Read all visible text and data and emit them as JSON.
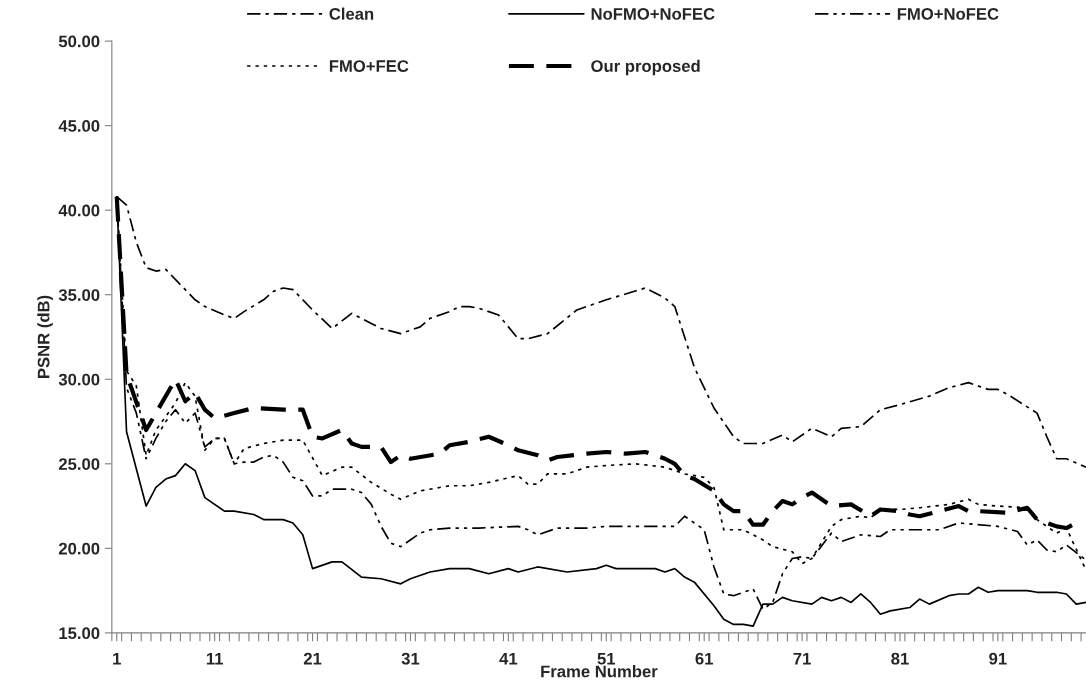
{
  "chart_data": {
    "type": "line",
    "xlabel": "Frame Number",
    "ylabel": "PSNR (dB)",
    "xlim": [
      0.5,
      100
    ],
    "ylim": [
      15,
      50
    ],
    "yticks": [
      {
        "value": 15,
        "label": "15.00"
      },
      {
        "value": 20,
        "label": "20.00"
      },
      {
        "value": 25,
        "label": "25.00"
      },
      {
        "value": 30,
        "label": "30.00"
      },
      {
        "value": 35,
        "label": "35.00"
      },
      {
        "value": 40,
        "label": "40.00"
      },
      {
        "value": 45,
        "label": "45.00"
      },
      {
        "value": 50,
        "label": "50.00"
      }
    ],
    "xticks": [
      1,
      11,
      21,
      31,
      41,
      51,
      61,
      71,
      81,
      91,
      {
        "value": 0.5,
        "label": null
      },
      {
        "value": 1.5,
        "label": null
      },
      {
        "value": 2.5,
        "label": null
      },
      {
        "value": 3.5,
        "label": null
      },
      {
        "value": 4.5,
        "label": null
      },
      {
        "value": 5.5,
        "label": null
      },
      {
        "value": 6.5,
        "label": null
      },
      {
        "value": 7.5,
        "label": null
      },
      {
        "value": 8.5,
        "label": null
      },
      {
        "value": 9.5,
        "label": null
      },
      {
        "value": 10.5,
        "label": null
      },
      {
        "value": 11.5,
        "label": null
      },
      {
        "value": 12.5,
        "label": null
      },
      {
        "value": 13.5,
        "label": null
      },
      {
        "value": 14.5,
        "label": null
      },
      {
        "value": 15.5,
        "label": null
      },
      {
        "value": 16.5,
        "label": null
      },
      {
        "value": 17.5,
        "label": null
      },
      {
        "value": 18.5,
        "label": null
      },
      {
        "value": 19.5,
        "label": null
      },
      {
        "value": 20.5,
        "label": null
      },
      {
        "value": 21.5,
        "label": null
      },
      {
        "value": 22.5,
        "label": null
      },
      {
        "value": 23.5,
        "label": null
      },
      {
        "value": 24.5,
        "label": null
      },
      {
        "value": 25.5,
        "label": null
      },
      {
        "value": 26.5,
        "label": null
      },
      {
        "value": 27.5,
        "label": null
      },
      {
        "value": 28.5,
        "label": null
      },
      {
        "value": 29.5,
        "label": null
      },
      {
        "value": 30.5,
        "label": null
      },
      {
        "value": 31.5,
        "label": null
      },
      {
        "value": 32.5,
        "label": null
      },
      {
        "value": 33.5,
        "label": null
      },
      {
        "value": 34.5,
        "label": null
      },
      {
        "value": 35.5,
        "label": null
      },
      {
        "value": 36.5,
        "label": null
      },
      {
        "value": 37.5,
        "label": null
      },
      {
        "value": 38.5,
        "label": null
      },
      {
        "value": 39.5,
        "label": null
      },
      {
        "value": 40.5,
        "label": null
      },
      {
        "value": 41.5,
        "label": null
      },
      {
        "value": 42.5,
        "label": null
      },
      {
        "value": 43.5,
        "label": null
      },
      {
        "value": 44.5,
        "label": null
      },
      {
        "value": 45.5,
        "label": null
      },
      {
        "value": 46.5,
        "label": null
      },
      {
        "value": 47.5,
        "label": null
      },
      {
        "value": 48.5,
        "label": null
      },
      {
        "value": 49.5,
        "label": null
      },
      {
        "value": 50.5,
        "label": null
      },
      {
        "value": 51.5,
        "label": null
      },
      {
        "value": 52.5,
        "label": null
      },
      {
        "value": 53.5,
        "label": null
      },
      {
        "value": 54.5,
        "label": null
      },
      {
        "value": 55.5,
        "label": null
      },
      {
        "value": 56.5,
        "label": null
      },
      {
        "value": 57.5,
        "label": null
      },
      {
        "value": 58.5,
        "label": null
      },
      {
        "value": 59.5,
        "label": null
      },
      {
        "value": 60.5,
        "label": null
      },
      {
        "value": 61.5,
        "label": null
      },
      {
        "value": 62.5,
        "label": null
      },
      {
        "value": 63.5,
        "label": null
      },
      {
        "value": 64.5,
        "label": null
      },
      {
        "value": 65.5,
        "label": null
      },
      {
        "value": 66.5,
        "label": null
      },
      {
        "value": 67.5,
        "label": null
      },
      {
        "value": 68.5,
        "label": null
      },
      {
        "value": 69.5,
        "label": null
      },
      {
        "value": 70.5,
        "label": null
      },
      {
        "value": 71.5,
        "label": null
      },
      {
        "value": 72.5,
        "label": null
      },
      {
        "value": 73.5,
        "label": null
      },
      {
        "value": 74.5,
        "label": null
      },
      {
        "value": 75.5,
        "label": null
      },
      {
        "value": 76.5,
        "label": null
      },
      {
        "value": 77.5,
        "label": null
      },
      {
        "value": 78.5,
        "label": null
      },
      {
        "value": 79.5,
        "label": null
      },
      {
        "value": 80.5,
        "label": null
      },
      {
        "value": 81.5,
        "label": null
      },
      {
        "value": 82.5,
        "label": null
      },
      {
        "value": 83.5,
        "label": null
      },
      {
        "value": 84.5,
        "label": null
      },
      {
        "value": 85.5,
        "label": null
      },
      {
        "value": 86.5,
        "label": null
      },
      {
        "value": 87.5,
        "label": null
      },
      {
        "value": 88.5,
        "label": null
      },
      {
        "value": 89.5,
        "label": null
      },
      {
        "value": 90.5,
        "label": null
      },
      {
        "value": 91.5,
        "label": null
      },
      {
        "value": 92.5,
        "label": null
      },
      {
        "value": 93.5,
        "label": null
      },
      {
        "value": 94.5,
        "label": null
      },
      {
        "value": 95.5,
        "label": null
      },
      {
        "value": 96.5,
        "label": null
      },
      {
        "value": 97.5,
        "label": null
      },
      {
        "value": 98.5,
        "label": null
      },
      {
        "value": 99.5,
        "label": null
      }
    ],
    "grid": false,
    "legend": "top",
    "marker": "none",
    "series": [
      {
        "name": "Clean",
        "color": "#000000",
        "line_style": "dashdot",
        "x": [
          1,
          2,
          3,
          4,
          5,
          6,
          8,
          9,
          10,
          12,
          13,
          14,
          16,
          17,
          18,
          19,
          21,
          23,
          25,
          26,
          27,
          28,
          30,
          32,
          33,
          35,
          36,
          37,
          38,
          40,
          42,
          43,
          45,
          48,
          51,
          55,
          57,
          58,
          60,
          62,
          64,
          65,
          67,
          69,
          70,
          72,
          74,
          75,
          77,
          79,
          81,
          84,
          86,
          88,
          90,
          91,
          92,
          95,
          96,
          97,
          98,
          100
        ],
        "values": [
          40.8,
          40.3,
          38.1,
          36.6,
          36.4,
          36.5,
          35.3,
          34.7,
          34.3,
          33.8,
          33.6,
          34.0,
          34.7,
          35.2,
          35.4,
          35.3,
          34.1,
          33.0,
          33.9,
          33.6,
          33.3,
          33.0,
          32.7,
          33.1,
          33.6,
          34.0,
          34.3,
          34.3,
          34.2,
          33.8,
          32.4,
          32.4,
          32.7,
          34.1,
          34.7,
          35.4,
          34.8,
          34.3,
          30.7,
          28.3,
          26.6,
          26.2,
          26.2,
          26.7,
          26.3,
          27.1,
          26.6,
          27.1,
          27.2,
          28.2,
          28.5,
          29.0,
          29.5,
          29.8,
          29.4,
          29.4,
          29.1,
          28.0,
          26.6,
          25.3,
          25.3,
          24.8
        ]
      },
      {
        "name": "NoFMO+NoFEC",
        "color": "#000000",
        "line_style": "solid",
        "x": [
          1,
          2,
          4,
          5,
          6,
          7,
          8,
          9,
          10,
          12,
          13,
          15,
          16,
          18,
          19,
          20,
          21,
          23,
          24,
          26,
          28,
          30,
          31,
          33,
          35,
          37,
          39,
          41,
          42,
          44,
          47,
          50,
          51,
          52,
          56,
          57,
          58,
          59,
          60,
          62,
          63,
          64,
          65,
          66,
          67,
          68,
          69,
          70,
          72,
          73,
          74,
          75,
          76,
          77,
          78,
          79,
          80,
          82,
          83,
          84,
          86,
          87,
          88,
          89,
          90,
          91,
          94,
          95,
          97,
          98,
          99,
          100
        ],
        "values": [
          40.8,
          26.9,
          22.5,
          23.6,
          24.1,
          24.3,
          25.0,
          24.6,
          23.0,
          22.2,
          22.2,
          22.0,
          21.7,
          21.7,
          21.5,
          20.8,
          18.8,
          19.2,
          19.2,
          18.3,
          18.2,
          17.9,
          18.2,
          18.6,
          18.8,
          18.8,
          18.5,
          18.8,
          18.6,
          18.9,
          18.6,
          18.8,
          19.0,
          18.8,
          18.8,
          18.6,
          18.8,
          18.3,
          18.0,
          16.6,
          15.8,
          15.5,
          15.5,
          15.4,
          16.7,
          16.7,
          17.1,
          16.9,
          16.7,
          17.1,
          16.9,
          17.1,
          16.8,
          17.3,
          16.8,
          16.1,
          16.3,
          16.5,
          17.0,
          16.7,
          17.2,
          17.3,
          17.3,
          17.7,
          17.4,
          17.5,
          17.5,
          17.4,
          17.4,
          17.3,
          16.7,
          16.8
        ]
      },
      {
        "name": "FMO+NoFEC",
        "color": "#000000",
        "line_style": "dashdotdot",
        "x": [
          1,
          2,
          3,
          4,
          5,
          6,
          7,
          8,
          9,
          10,
          11,
          12,
          13,
          14,
          15,
          16,
          17,
          18,
          19,
          20,
          21,
          22,
          23,
          25,
          26,
          27,
          28,
          29,
          30,
          32,
          33,
          35,
          38,
          42,
          43,
          44,
          46,
          49,
          51,
          54,
          58,
          59,
          61,
          62,
          63,
          64,
          66,
          67,
          68,
          69,
          70,
          71,
          72,
          74,
          75,
          77,
          79,
          80,
          82,
          85,
          87,
          91,
          93,
          94,
          95,
          96,
          97,
          98,
          100
        ],
        "values": [
          40.8,
          29.5,
          28.0,
          25.3,
          26.5,
          27.5,
          28.2,
          27.4,
          28.0,
          26.0,
          26.5,
          26.5,
          25.0,
          25.1,
          25.1,
          25.4,
          25.5,
          25.1,
          24.2,
          24.0,
          23.1,
          23.1,
          23.5,
          23.5,
          23.3,
          22.6,
          21.3,
          20.3,
          20.1,
          20.9,
          21.1,
          21.2,
          21.2,
          21.3,
          21.1,
          20.8,
          21.2,
          21.2,
          21.3,
          21.3,
          21.3,
          21.9,
          21.1,
          18.9,
          17.3,
          17.2,
          17.6,
          16.4,
          16.8,
          18.5,
          19.4,
          19.5,
          19.4,
          20.9,
          20.4,
          20.8,
          20.7,
          21.1,
          21.1,
          21.1,
          21.5,
          21.3,
          21.0,
          20.2,
          20.5,
          19.9,
          19.8,
          20.2,
          19.3
        ]
      },
      {
        "name": "FMO+FEC",
        "color": "#000000",
        "line_style": "dotted",
        "x": [
          1,
          2,
          3,
          4,
          5,
          6,
          7,
          8,
          9,
          10,
          11,
          12,
          13,
          14,
          16,
          18,
          20,
          22,
          24,
          25,
          27,
          29,
          30,
          32,
          35,
          37,
          39,
          42,
          43,
          44,
          45,
          47,
          49,
          51,
          54,
          57,
          59,
          61,
          62,
          63,
          65,
          67,
          68,
          70,
          71,
          72,
          74,
          75,
          77,
          78,
          79,
          81,
          83,
          86,
          88,
          89,
          91,
          94,
          95,
          97,
          98,
          100
        ],
        "values": [
          40.8,
          30.5,
          29.6,
          25.5,
          27.0,
          27.8,
          28.6,
          29.8,
          29.0,
          25.8,
          26.5,
          26.5,
          25.0,
          25.9,
          26.2,
          26.4,
          26.4,
          24.3,
          24.8,
          24.8,
          23.9,
          23.2,
          22.9,
          23.4,
          23.7,
          23.7,
          23.9,
          24.3,
          23.8,
          23.8,
          24.4,
          24.4,
          24.8,
          24.9,
          25.0,
          24.8,
          24.4,
          24.2,
          23.6,
          21.1,
          21.1,
          20.5,
          20.1,
          19.8,
          19.1,
          19.4,
          21.3,
          21.7,
          21.9,
          21.8,
          22.3,
          22.3,
          22.4,
          22.6,
          22.9,
          22.6,
          22.5,
          22.4,
          21.7,
          20.9,
          21.2,
          18.7
        ]
      },
      {
        "name": "Our proposed",
        "color": "#000000",
        "line_style": "dashed",
        "x": [
          1,
          2,
          4,
          7,
          8,
          9,
          10,
          11,
          13,
          15,
          18,
          19,
          20,
          21,
          22,
          24,
          25,
          26,
          28,
          29,
          30,
          31,
          34,
          35,
          37,
          39,
          41,
          42,
          44,
          45,
          46,
          49,
          51,
          53,
          55,
          56,
          57,
          58,
          59,
          60,
          62,
          63,
          64,
          65,
          66,
          67,
          68,
          69,
          70,
          71,
          72,
          74,
          76,
          78,
          79,
          81,
          82,
          83,
          85,
          87,
          88,
          89,
          92,
          94,
          95,
          97,
          98,
          99
        ],
        "values": [
          40.8,
          30.3,
          27.0,
          30.0,
          28.7,
          29.2,
          28.2,
          27.7,
          28.0,
          28.3,
          28.2,
          28.2,
          28.2,
          26.6,
          26.5,
          27.0,
          26.2,
          26.0,
          26.0,
          25.1,
          25.5,
          25.3,
          25.6,
          26.1,
          26.3,
          26.6,
          26.1,
          25.8,
          25.5,
          25.2,
          25.4,
          25.6,
          25.7,
          25.6,
          25.7,
          25.5,
          25.3,
          25.0,
          24.3,
          24.1,
          23.4,
          22.6,
          22.2,
          22.2,
          21.4,
          21.4,
          22.2,
          22.8,
          22.6,
          23.0,
          23.3,
          22.5,
          22.6,
          21.9,
          22.3,
          22.2,
          22.0,
          21.9,
          22.2,
          22.5,
          22.2,
          22.2,
          22.1,
          22.4,
          21.7,
          21.3,
          21.2,
          21.5
        ]
      }
    ]
  }
}
